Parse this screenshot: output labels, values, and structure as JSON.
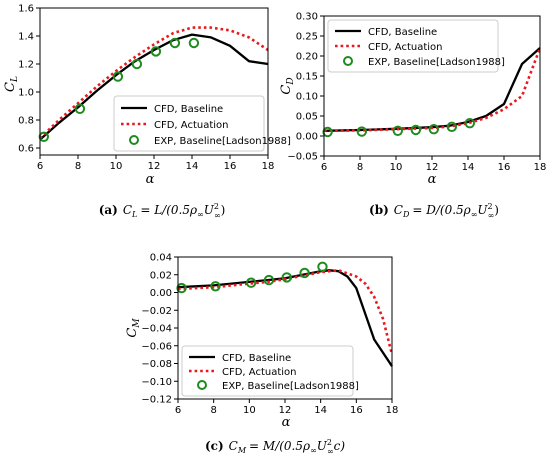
{
  "colors": {
    "baseline": "#000000",
    "actuation": "#e8191e",
    "exp": "#1e8b1e"
  },
  "chart_data": [
    {
      "type": "line",
      "panel": "a",
      "xlabel": "α",
      "ylabel_main": "C",
      "ylabel_sub": "L",
      "xlim": [
        6,
        18
      ],
      "ylim": [
        0.55,
        1.6
      ],
      "xticks": [
        6,
        8,
        10,
        12,
        14,
        16,
        18
      ],
      "yticks": [
        0.6,
        0.8,
        1.0,
        1.2,
        1.4,
        1.6
      ],
      "ytick_labels": [
        "0.6",
        "0.8",
        "1.0",
        "1.2",
        "1.4",
        "1.6"
      ],
      "legend_position": "lower-right",
      "series": [
        {
          "name": "CFD, Baseline",
          "style": "solid",
          "x": [
            6,
            7,
            8,
            9,
            10,
            11,
            12,
            13,
            14,
            15,
            16,
            17,
            18
          ],
          "y": [
            0.66,
            0.78,
            0.89,
            1.01,
            1.12,
            1.22,
            1.3,
            1.37,
            1.41,
            1.39,
            1.33,
            1.22,
            1.2
          ]
        },
        {
          "name": "CFD, Actuation",
          "style": "dotted",
          "x": [
            6,
            7,
            8,
            9,
            10,
            11,
            12,
            13,
            14,
            15,
            16,
            17,
            18
          ],
          "y": [
            0.67,
            0.8,
            0.92,
            1.04,
            1.15,
            1.25,
            1.34,
            1.42,
            1.46,
            1.46,
            1.44,
            1.39,
            1.3
          ]
        },
        {
          "name": "EXP, Baseline[Ladson1988]",
          "style": "marker",
          "x": [
            6.2,
            8.1,
            10.1,
            11.1,
            12.1,
            13.1,
            14.1
          ],
          "y": [
            0.68,
            0.88,
            1.11,
            1.2,
            1.29,
            1.35,
            1.35
          ]
        }
      ]
    },
    {
      "type": "line",
      "panel": "b",
      "xlabel": "α",
      "ylabel_main": "C",
      "ylabel_sub": "D",
      "xlim": [
        6,
        18
      ],
      "ylim": [
        -0.05,
        0.3
      ],
      "xticks": [
        6,
        8,
        10,
        12,
        14,
        16,
        18
      ],
      "yticks": [
        -0.05,
        0.0,
        0.05,
        0.1,
        0.15,
        0.2,
        0.25,
        0.3
      ],
      "ytick_labels": [
        "−0.05",
        "0.00",
        "0.05",
        "0.10",
        "0.15",
        "0.20",
        "0.25",
        "0.30"
      ],
      "legend_position": "upper-left",
      "series": [
        {
          "name": "CFD, Baseline",
          "style": "solid",
          "x": [
            6,
            8,
            10,
            12,
            13,
            14,
            15,
            16,
            17,
            18
          ],
          "y": [
            0.013,
            0.015,
            0.018,
            0.022,
            0.026,
            0.035,
            0.05,
            0.08,
            0.18,
            0.22
          ]
        },
        {
          "name": "CFD, Actuation",
          "style": "dotted",
          "x": [
            6,
            8,
            10,
            12,
            13,
            14,
            15,
            16,
            17,
            18
          ],
          "y": [
            0.013,
            0.014,
            0.017,
            0.02,
            0.024,
            0.032,
            0.045,
            0.067,
            0.1,
            0.22
          ]
        },
        {
          "name": "EXP, Baseline[Ladson1988]",
          "style": "marker",
          "x": [
            6.2,
            8.1,
            10.1,
            11.1,
            12.1,
            13.1,
            14.1
          ],
          "y": [
            0.01,
            0.011,
            0.013,
            0.015,
            0.017,
            0.023,
            0.032
          ]
        }
      ]
    },
    {
      "type": "line",
      "panel": "c",
      "xlabel": "α",
      "ylabel_main": "C",
      "ylabel_sub": "M",
      "xlim": [
        6,
        18
      ],
      "ylim": [
        -0.12,
        0.04
      ],
      "xticks": [
        6,
        8,
        10,
        12,
        14,
        16,
        18
      ],
      "yticks": [
        -0.12,
        -0.1,
        -0.08,
        -0.06,
        -0.04,
        -0.02,
        0.0,
        0.02,
        0.04
      ],
      "ytick_labels": [
        "−0.12",
        "−0.10",
        "−0.08",
        "−0.06",
        "−0.04",
        "−0.02",
        "0.00",
        "0.02",
        "0.04"
      ],
      "legend_position": "lower-left",
      "series": [
        {
          "name": "CFD, Baseline",
          "style": "solid",
          "x": [
            6,
            7,
            8,
            9,
            10,
            11,
            12,
            13,
            14,
            14.5,
            15,
            15.5,
            16,
            17,
            18
          ],
          "y": [
            0.006,
            0.007,
            0.008,
            0.01,
            0.012,
            0.014,
            0.016,
            0.02,
            0.024,
            0.025,
            0.024,
            0.018,
            0.005,
            -0.053,
            -0.083
          ]
        },
        {
          "name": "CFD, Actuation",
          "style": "dotted",
          "x": [
            6,
            7,
            8,
            9,
            10,
            11,
            12,
            13,
            14,
            15,
            16,
            16.5,
            17,
            17.5,
            18
          ],
          "y": [
            0.004,
            0.005,
            0.006,
            0.008,
            0.01,
            0.012,
            0.015,
            0.019,
            0.023,
            0.025,
            0.018,
            0.01,
            -0.005,
            -0.03,
            -0.07
          ]
        },
        {
          "name": "EXP, Baseline[Ladson1988]",
          "style": "marker",
          "x": [
            6.2,
            8.1,
            10.1,
            11.1,
            12.1,
            13.1,
            14.1
          ],
          "y": [
            0.005,
            0.007,
            0.011,
            0.014,
            0.017,
            0.022,
            0.029
          ]
        }
      ]
    }
  ],
  "captions": {
    "a": {
      "label": "(a)",
      "lhs": "C",
      "lhs_sub": "L",
      "rhs": "= L/(0.5ρ",
      "inf1": "∞",
      "u": "U",
      "exp": "2",
      "inf2": "∞",
      "tail": ")"
    },
    "b": {
      "label": "(b)",
      "lhs": "C",
      "lhs_sub": "D",
      "rhs": "= D/(0.5ρ",
      "inf1": "∞",
      "u": "U",
      "exp": "2",
      "inf2": "∞",
      "tail": ")"
    },
    "c": {
      "label": "(c)",
      "lhs": "C",
      "lhs_sub": "M",
      "rhs": "= M/(0.5ρ",
      "inf1": "∞",
      "u": "U",
      "exp": "2",
      "inf2": "∞",
      "tail": "c)"
    }
  }
}
